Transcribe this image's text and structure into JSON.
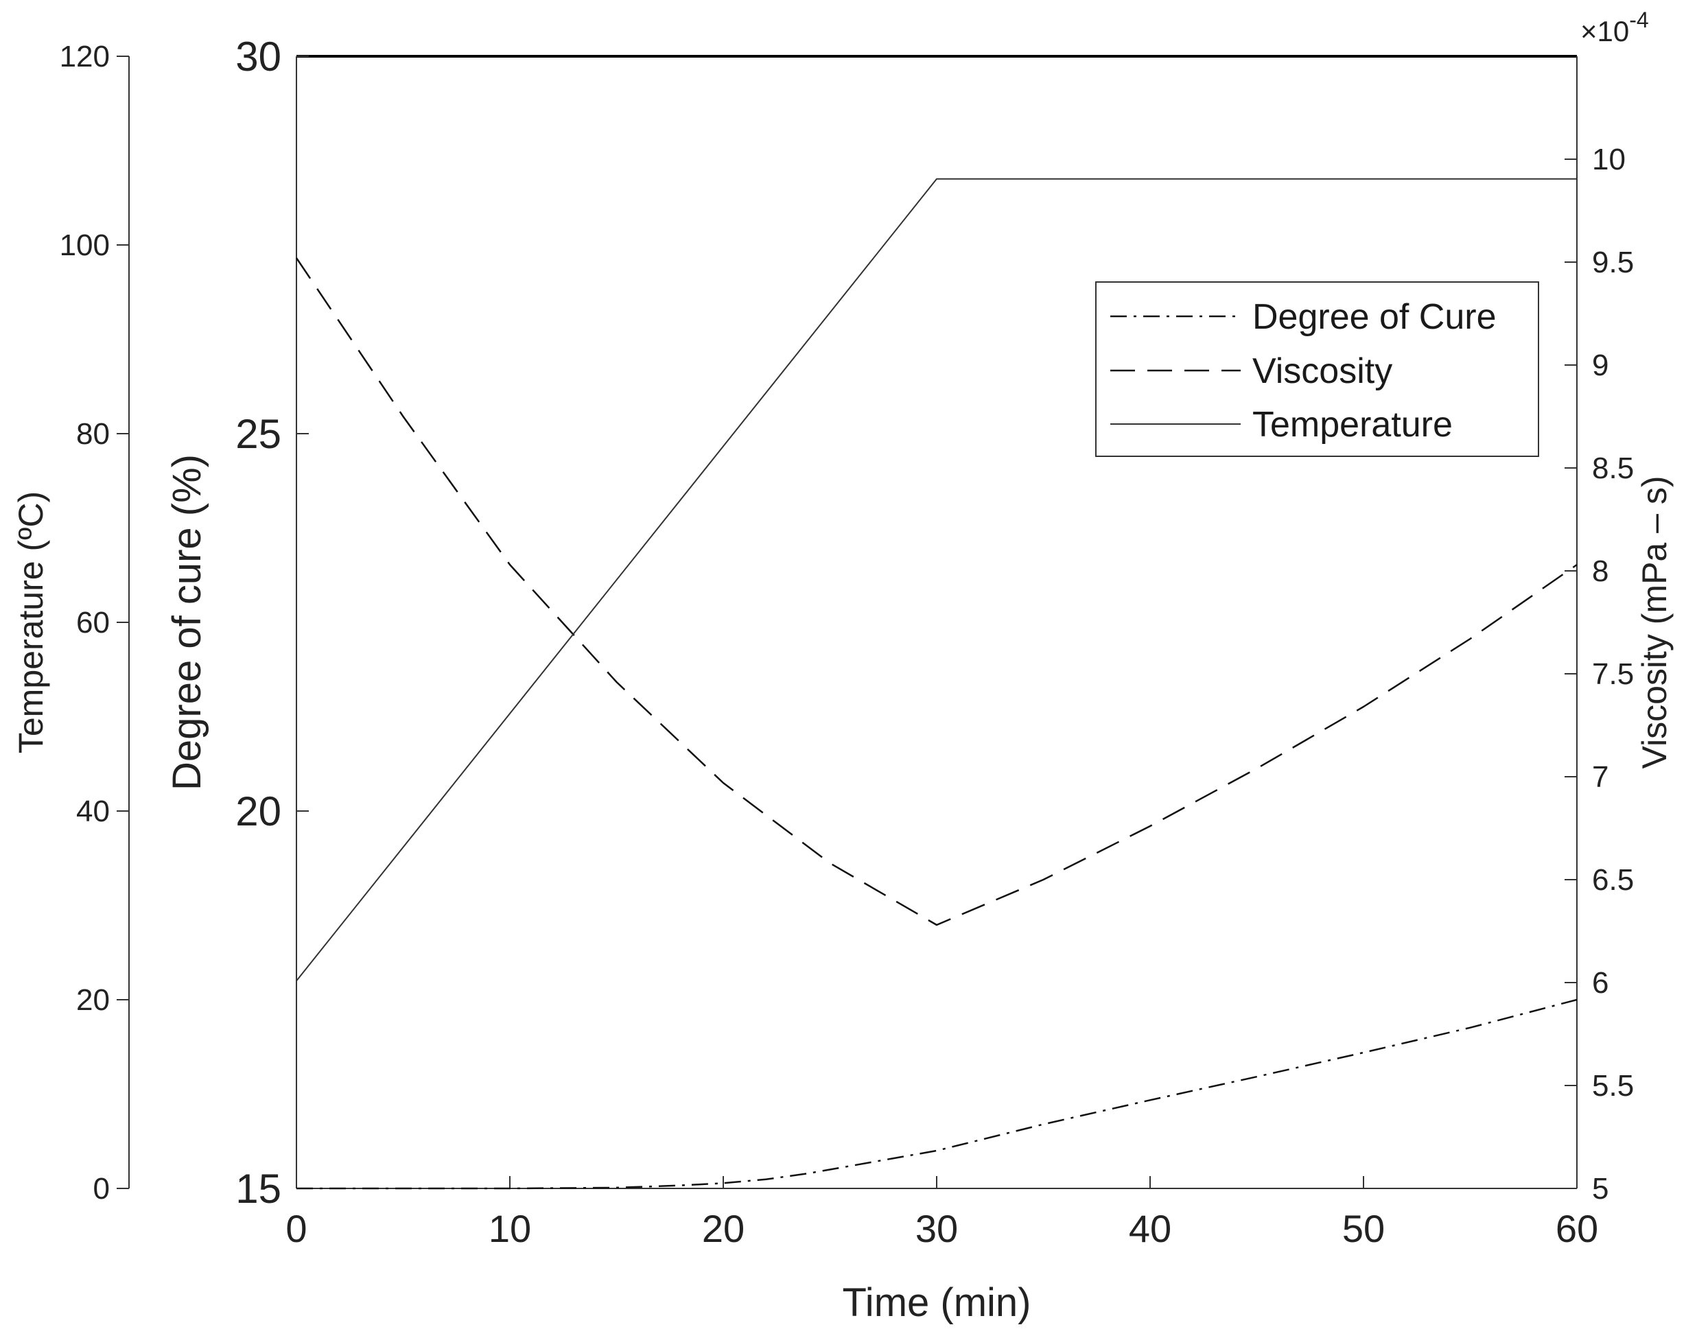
{
  "chart_data": {
    "type": "line",
    "xlabel": "Time (min)",
    "xlim": [
      0,
      60
    ],
    "xticks": [
      0,
      10,
      20,
      30,
      40,
      50,
      60
    ],
    "axes": {
      "temperature": {
        "label": "Temperature (ºC)",
        "lim": [
          0,
          120
        ],
        "ticks": [
          0,
          20,
          40,
          60,
          80,
          100,
          120
        ]
      },
      "cure": {
        "label": "Degree of cure (%)",
        "lim": [
          15,
          30
        ],
        "ticks": [
          15,
          20,
          25,
          30
        ]
      },
      "viscosity": {
        "label": "Viscosity (mPa – s)",
        "lim": [
          5,
          10.5
        ],
        "ticks": [
          5,
          5.5,
          6,
          6.5,
          7,
          7.5,
          8,
          8.5,
          9,
          9.5,
          10
        ],
        "tick_labels": [
          "5",
          "5.5",
          "6",
          "6.5",
          "7",
          "7.5",
          "8",
          "8.5",
          "9",
          "9.5",
          "10"
        ],
        "exponent_label": "×10",
        "exponent_power": "-4"
      }
    },
    "series": [
      {
        "name": "Degree of Cure",
        "axis": "cure",
        "style": "dashdot",
        "x": [
          0,
          10,
          15,
          18,
          20,
          22,
          24,
          26,
          28,
          30,
          35,
          40,
          45,
          50,
          55,
          60
        ],
        "y": [
          15.0,
          15.0,
          15.01,
          15.04,
          15.07,
          15.12,
          15.2,
          15.3,
          15.4,
          15.5,
          15.85,
          16.17,
          16.48,
          16.8,
          17.13,
          17.5
        ]
      },
      {
        "name": "Viscosity",
        "axis": "viscosity",
        "style": "dashed",
        "x": [
          0,
          5,
          10,
          15,
          20,
          25,
          30,
          35,
          40,
          45,
          50,
          55,
          60
        ],
        "y": [
          9.52,
          8.75,
          8.03,
          7.46,
          6.97,
          6.58,
          6.28,
          6.5,
          6.76,
          7.04,
          7.34,
          7.67,
          8.03
        ]
      },
      {
        "name": "Temperature",
        "axis": "temperature",
        "style": "solid",
        "x": [
          0,
          30,
          60
        ],
        "y": [
          22,
          107,
          107
        ]
      }
    ],
    "legend": {
      "placement": "top-right",
      "entries": [
        "Degree of Cure",
        "Viscosity",
        "Temperature"
      ]
    }
  }
}
